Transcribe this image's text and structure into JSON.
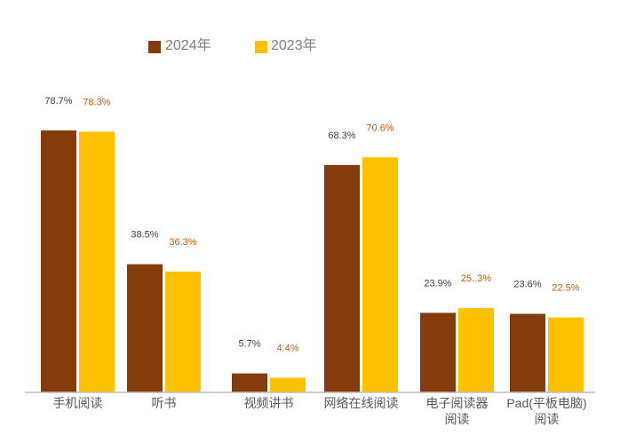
{
  "chart_data": {
    "type": "bar",
    "categories": [
      [
        "手机阅读"
      ],
      [
        "听书"
      ],
      [
        "视频讲书"
      ],
      [
        "网络在线阅读"
      ],
      [
        "电子阅读器",
        "阅读"
      ],
      [
        "Pad(平板电脑)",
        "阅读"
      ]
    ],
    "series": [
      {
        "name": "2024年",
        "color": "#843c0c",
        "label_color": "#404040",
        "values": [
          78.7,
          38.5,
          5.7,
          68.3,
          23.9,
          23.6
        ],
        "labels": [
          "78.7%",
          "38.5%",
          "5.7%",
          "68.3%",
          "23.9%",
          "23.6%"
        ]
      },
      {
        "name": "2023年",
        "color": "#ffc000",
        "label_color": "#c55a11",
        "values": [
          78.3,
          36.3,
          4.4,
          70.6,
          25.3,
          22.5
        ],
        "labels": [
          "78.3%",
          "36.3%",
          "4.4%",
          "70.6%",
          "25..3%",
          "22.5%"
        ]
      }
    ],
    "legend_position": "top",
    "grid": false,
    "ylim": [
      0,
      100
    ]
  }
}
